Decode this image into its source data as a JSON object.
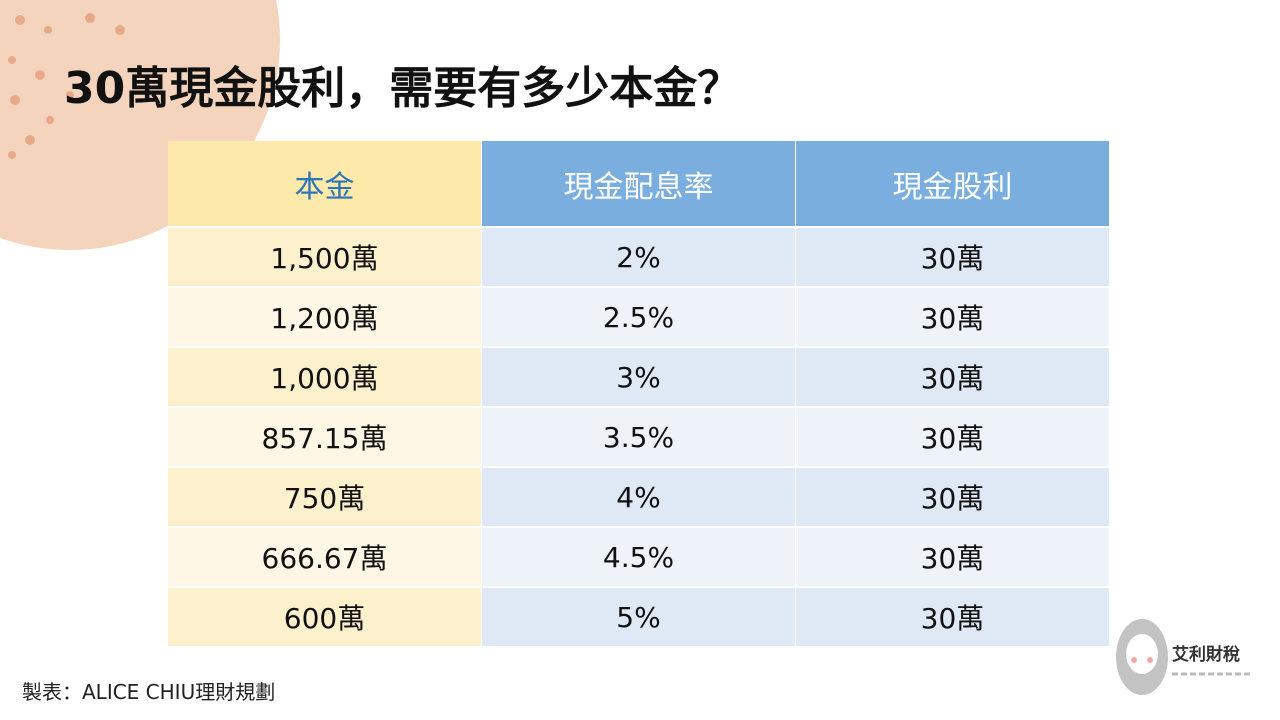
{
  "title": "30萬現金股利，需要有多少本金？",
  "table": {
    "header": [
      "本金",
      "現金配息率",
      "現金股利"
    ],
    "rows": [
      [
        "1,500萬",
        "2%",
        "30萬"
      ],
      [
        "1,200萬",
        "2.5%",
        "30萬"
      ],
      [
        "1,000萬",
        "3%",
        "30萬"
      ],
      [
        "857.15萬",
        "3.5%",
        "30萬"
      ],
      [
        "750萬",
        "4%",
        "30萬"
      ],
      [
        "666.67萬",
        "4.5%",
        "30萬"
      ],
      [
        "600萬",
        "5%",
        "30萬"
      ]
    ]
  },
  "footer": "製表：ALICE CHIU理財規劃",
  "logo": "艾利財稅"
}
